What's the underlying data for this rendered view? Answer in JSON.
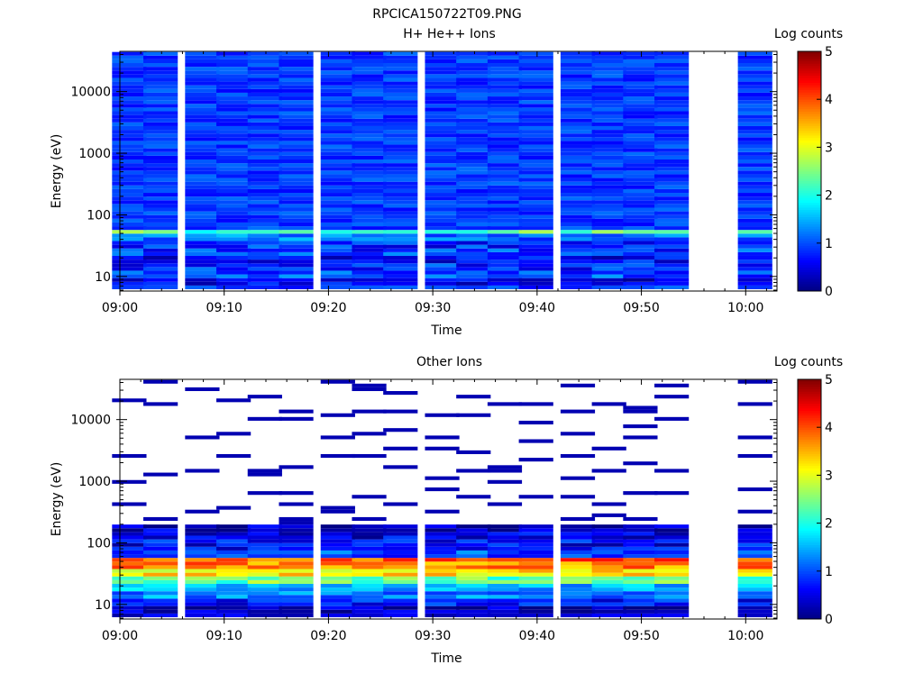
{
  "page": {
    "filename": "RPCICA150722T09.PNG"
  },
  "chart_data": [
    {
      "type": "heatmap",
      "title": "H+ He++ Ions",
      "xlabel": "Time",
      "ylabel": "Energy (eV)",
      "x_ticks": [
        "09:00",
        "09:10",
        "09:20",
        "09:30",
        "09:40",
        "09:50",
        "10:00"
      ],
      "y_ticks": [
        "10",
        "100",
        "1000",
        "10000"
      ],
      "xlim": [
        "09:00",
        "10:03"
      ],
      "ylim": [
        5.8,
        45000
      ],
      "y_scale": "log",
      "colorbar": {
        "label": "Log counts",
        "range": [
          0,
          5
        ],
        "ticks": [
          "0",
          "1",
          "2",
          "3",
          "4",
          "5"
        ],
        "colormap": "jet"
      },
      "time_bins": [
        "09:01",
        "09:04",
        "09:08",
        "09:11",
        "09:14",
        "09:17",
        "09:21",
        "09:24",
        "09:27",
        "09:31",
        "09:34",
        "09:37",
        "09:40",
        "09:44",
        "09:47",
        "09:50",
        "09:53",
        "10:01"
      ],
      "data_gaps": [
        [
          "09:56",
          "10:00"
        ]
      ],
      "low_energy_profile": {
        "energy_eV": [
          8,
          11,
          14,
          19,
          25,
          32,
          42,
          53
        ],
        "typical_log_counts": [
          0.5,
          1.0,
          0.8,
          0.6,
          0.9,
          0.8,
          1.2,
          2.3
        ]
      },
      "high_energy_typical_log_counts": 0.9
    },
    {
      "type": "heatmap",
      "title": "Other Ions",
      "xlabel": "Time",
      "ylabel": "Energy (eV)",
      "x_ticks": [
        "09:00",
        "09:10",
        "09:20",
        "09:30",
        "09:40",
        "09:50",
        "10:00"
      ],
      "y_ticks": [
        "10",
        "100",
        "1000",
        "10000"
      ],
      "xlim": [
        "09:00",
        "10:03"
      ],
      "ylim": [
        5.8,
        45000
      ],
      "y_scale": "log",
      "colorbar": {
        "label": "Log counts",
        "range": [
          0,
          5
        ],
        "ticks": [
          "0",
          "1",
          "2",
          "3",
          "4",
          "5"
        ],
        "colormap": "jet"
      },
      "time_bins": [
        "09:01",
        "09:04",
        "09:08",
        "09:11",
        "09:14",
        "09:17",
        "09:21",
        "09:24",
        "09:27",
        "09:31",
        "09:34",
        "09:37",
        "09:40",
        "09:44",
        "09:47",
        "09:50",
        "09:53",
        "10:01"
      ],
      "data_gaps": [
        [
          "09:56",
          "10:00"
        ]
      ],
      "low_energy_profile": {
        "energy_eV": [
          8,
          11,
          14,
          19,
          25,
          32,
          42,
          53,
          67,
          85,
          107,
          135,
          170
        ],
        "typical_log_counts": [
          0.3,
          0.7,
          1.3,
          1.5,
          2.4,
          3.2,
          3.7,
          4.0,
          1.0,
          0.6,
          0.7,
          0.5,
          0.3
        ]
      },
      "sparse_high_energy_log_counts": 0.2
    }
  ]
}
